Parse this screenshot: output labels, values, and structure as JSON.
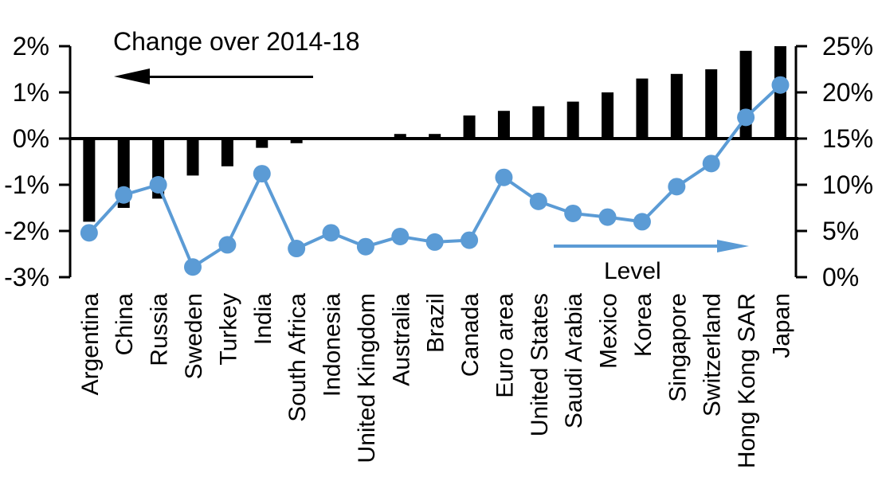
{
  "chart_data": {
    "type": "bar",
    "subtype": "combo-bar-line-dual-axis",
    "categories": [
      "Argentina",
      "China",
      "Russia",
      "Sweden",
      "Turkey",
      "India",
      "South Africa",
      "Indonesia",
      "United Kingdom",
      "Australia",
      "Brazil",
      "Canada",
      "Euro area",
      "United States",
      "Saudi Arabia",
      "Mexico",
      "Korea",
      "Singapore",
      "Switzerland",
      "Hong Kong SAR",
      "Japan"
    ],
    "series": [
      {
        "name": "Change over 2014-18",
        "type": "bar",
        "axis": "left",
        "values": [
          -1.8,
          -1.5,
          -1.3,
          -0.8,
          -0.6,
          -0.2,
          -0.1,
          0,
          0,
          0.1,
          0.1,
          0.5,
          0.6,
          0.7,
          0.8,
          1.0,
          1.3,
          1.4,
          1.5,
          1.9,
          2.0
        ]
      },
      {
        "name": "Level",
        "type": "line",
        "axis": "right",
        "values": [
          4.8,
          8.9,
          10.0,
          1.1,
          3.5,
          11.2,
          3.1,
          4.8,
          3.3,
          4.4,
          3.8,
          4.0,
          10.8,
          8.2,
          6.9,
          6.5,
          6.0,
          9.8,
          12.3,
          17.3,
          20.8
        ]
      }
    ],
    "left_axis": {
      "min": -3,
      "max": 2,
      "tick_labels": [
        "2%",
        "1%",
        "0%",
        "-1%",
        "-2%",
        "-3%"
      ]
    },
    "right_axis": {
      "min": 0,
      "max": 25,
      "tick_labels": [
        "25%",
        "20%",
        "15%",
        "10%",
        "5%",
        "0%"
      ]
    },
    "annotations": {
      "bar_series_label": "Change over 2014-18",
      "line_series_label": "Level",
      "bar_arrow_direction": "left",
      "line_arrow_direction": "right"
    },
    "colors": {
      "bar": "#000000",
      "line": "#5b9bd5",
      "text": "#000000"
    },
    "layout_hints": {
      "grid": false,
      "x_labels_rotated_90": true,
      "zero_line_left_axis_aligns_right_15pct": true
    }
  }
}
